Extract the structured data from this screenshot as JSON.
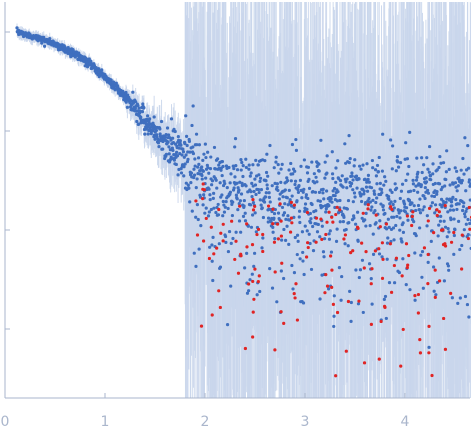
{
  "chart_data": {
    "type": "scatter",
    "title": "",
    "xlabel": "",
    "ylabel": "",
    "x_ticks": [
      0,
      1,
      2,
      3,
      4
    ],
    "x_tick_labels": [
      "0",
      "1",
      "2",
      "3",
      "4"
    ],
    "xlim": [
      0,
      4.67
    ],
    "y_scale": "log",
    "y_ticks_decades": 4,
    "y_tick_labels": [],
    "grid": false,
    "legend": "none",
    "colors": {
      "axis": "#aab6cc",
      "tick_label": "#aab6cc",
      "points": "#3f6fbf",
      "outliers": "#e02424",
      "error_bars": "#c9d6ec"
    },
    "series": [
      {
        "role": "measured points",
        "trend_x": [
          0.12,
          0.3,
          0.5,
          0.7,
          0.9,
          1.1,
          1.3,
          1.5,
          1.7,
          1.9,
          2.2,
          2.6,
          3.0,
          3.5,
          4.0,
          4.67
        ],
        "trend_log_y": [
          0.0,
          -0.05,
          -0.12,
          -0.22,
          -0.36,
          -0.55,
          -0.77,
          -1.0,
          -1.2,
          -1.38,
          -1.55,
          -1.6,
          -1.62,
          -1.63,
          -1.64,
          -1.65
        ],
        "noise_start_x": 1.8,
        "points_shown": 1600
      },
      {
        "role": "outlier points",
        "x_range": [
          1.9,
          4.67
        ],
        "points_shown": 180
      }
    ]
  }
}
